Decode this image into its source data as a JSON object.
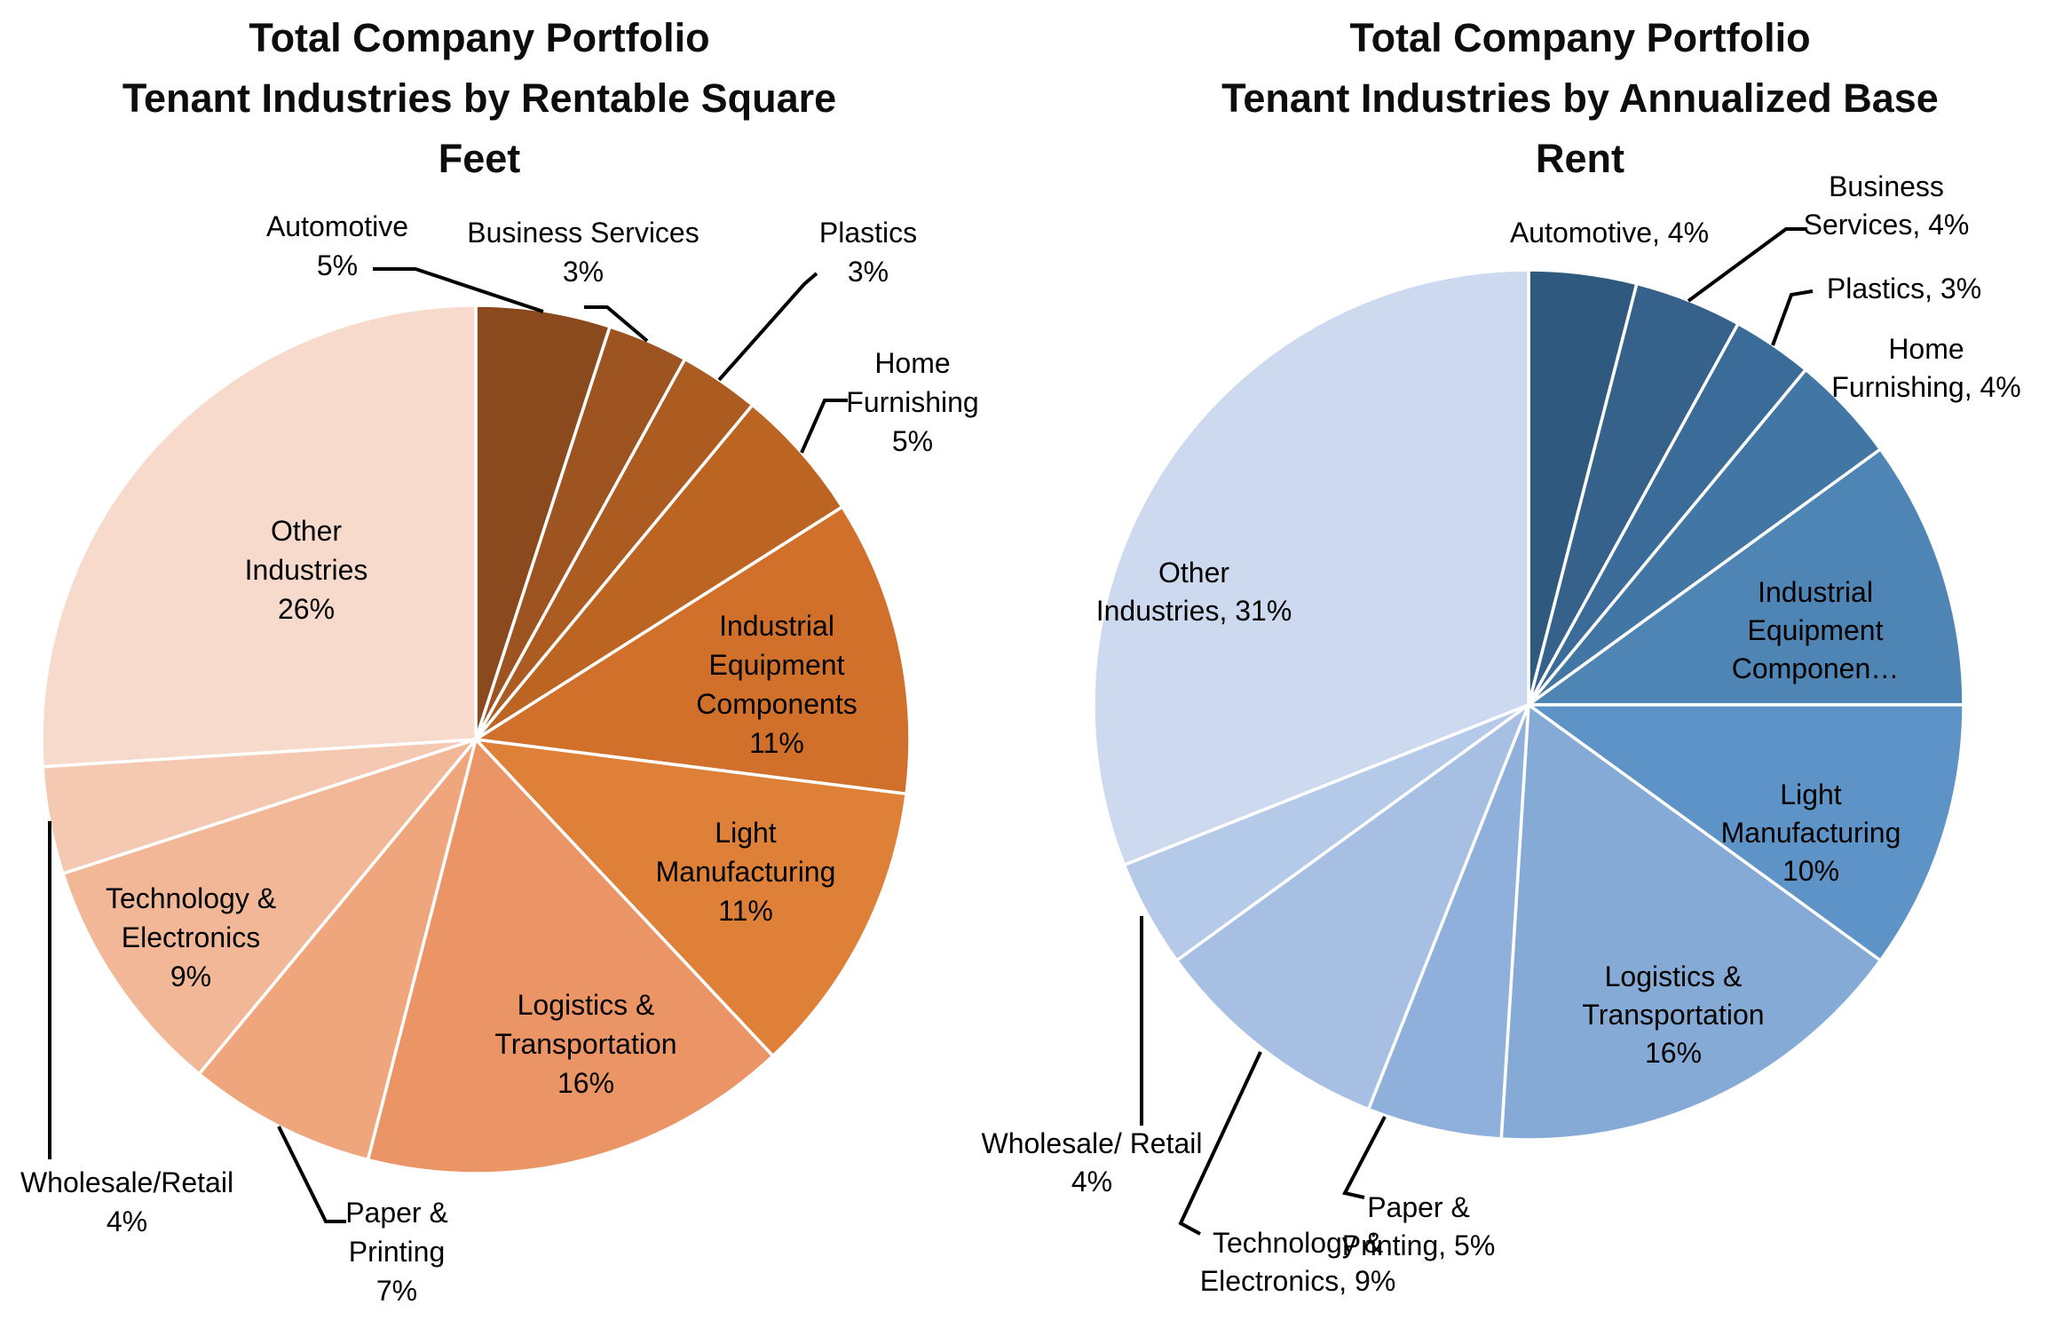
{
  "figure": {
    "background": "#FFFFFF",
    "label_color": "#000000",
    "leader_color": "#000000"
  },
  "chart_data": [
    {
      "type": "pie",
      "id": "rsf",
      "title": "Total Company Portfolio Tenant Industries by Rentable Square Feet",
      "title_lines": [
        "Total Company Portfolio",
        "Tenant Industries by Rentable Square",
        "Feet"
      ],
      "start_angle_deg": 0,
      "direction": "clockwise",
      "legend": false,
      "grid": false,
      "palette": "orange-monochromatic",
      "categories": [
        "Automotive",
        "Business Services",
        "Plastics",
        "Home Furnishing",
        "Industrial Equipment Components",
        "Light Manufacturing",
        "Logistics & Transportation",
        "Paper & Printing",
        "Technology & Electronics",
        "Wholesale/Retail",
        "Other Industries"
      ],
      "values": [
        5,
        3,
        3,
        5,
        11,
        11,
        16,
        7,
        9,
        4,
        26
      ],
      "percent_labels": [
        "5%",
        "3%",
        "3%",
        "5%",
        "11%",
        "11%",
        "16%",
        "7%",
        "9%",
        "4%",
        "26%"
      ],
      "label_lines": [
        [
          "Automotive",
          "5%"
        ],
        [
          "Business Services",
          "3%"
        ],
        [
          "Plastics",
          "3%"
        ],
        [
          "Home",
          "Furnishing",
          "5%"
        ],
        [
          "Industrial",
          "Equipment",
          "Components",
          "11%"
        ],
        [
          "Light",
          "Manufacturing",
          "11%"
        ],
        [
          "Logistics &",
          "Transportation",
          "16%"
        ],
        [
          "Paper &",
          "Printing",
          "7%"
        ],
        [
          "Technology &",
          "Electronics",
          "9%"
        ],
        [
          "Wholesale/Retail",
          "4%"
        ],
        [
          "Other",
          "Industries",
          "26%"
        ]
      ],
      "label_placement": [
        "outside",
        "outside",
        "outside",
        "outside",
        "inside",
        "inside",
        "inside",
        "outside",
        "inside",
        "outside",
        "inside"
      ],
      "colors": [
        "#8B4A1E",
        "#9D5420",
        "#AC5C20",
        "#BC6522",
        "#D0702A",
        "#DF8038",
        "#EB9466",
        "#EFA67D",
        "#F2B797",
        "#F5C8B2",
        "#F8DACC"
      ]
    },
    {
      "type": "pie",
      "id": "abr",
      "title": "Total Company Portfolio Tenant Industries by Annualized Base Rent",
      "title_lines": [
        "Total Company Portfolio",
        "Tenant Industries by Annualized Base",
        "Rent"
      ],
      "start_angle_deg": 0,
      "direction": "clockwise",
      "legend": false,
      "grid": false,
      "palette": "blue-monochromatic",
      "categories": [
        "Automotive",
        "Business Services",
        "Plastics",
        "Home Furnishing",
        "Industrial Equipment Components",
        "Light Manufacturing",
        "Logistics & Transportation",
        "Paper & Printing",
        "Technology & Electronics",
        "Wholesale/Retail",
        "Other Industries"
      ],
      "values": [
        4,
        4,
        3,
        4,
        10,
        10,
        16,
        5,
        9,
        4,
        31
      ],
      "percent_labels": [
        "4%",
        "4%",
        "3%",
        "4%",
        "",
        "10%",
        "16%",
        "5%",
        "9%",
        "4%",
        "31%"
      ],
      "label_lines": [
        [
          "Automotive, 4%"
        ],
        [
          "Business",
          "Services, 4%"
        ],
        [
          "Plastics, 3%"
        ],
        [
          "Home",
          "Furnishing, 4%"
        ],
        [
          "Industrial",
          "Equipment",
          "Componen…"
        ],
        [
          "Light",
          "Manufacturing",
          "10%"
        ],
        [
          "Logistics &",
          "Transportation",
          "16%"
        ],
        [
          "Paper &",
          "Printing, 5%"
        ],
        [
          "Technology &",
          "Electronics, 9%"
        ],
        [
          "Wholesale/ Retail",
          "4%"
        ],
        [
          "Other",
          "Industries, 31%"
        ]
      ],
      "label_placement": [
        "outside",
        "outside",
        "outside",
        "outside",
        "inside",
        "inside",
        "inside",
        "outside",
        "outside",
        "outside",
        "inside"
      ],
      "colors": [
        "#30597F",
        "#35618A",
        "#3B6C99",
        "#4277A5",
        "#4E85B5",
        "#5E93C7",
        "#85AAD6",
        "#8FB0DB",
        "#A6BFE2",
        "#B5C9E8",
        "#CCD9EF"
      ]
    }
  ]
}
